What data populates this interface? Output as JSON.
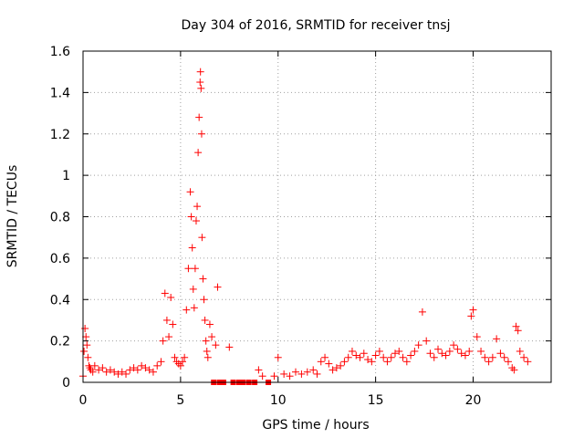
{
  "chart_data": {
    "type": "scatter",
    "title": "Day 304 of 2016, SRMTID for receiver tnsj",
    "xlabel": "GPS time / hours",
    "ylabel": "SRMTID / TECUs",
    "xlim": [
      0,
      24
    ],
    "ylim": [
      0,
      1.6
    ],
    "xticks": [
      0,
      5,
      10,
      15,
      20
    ],
    "xtick_labels": [
      "0",
      "5",
      "10",
      "15",
      "20"
    ],
    "yticks": [
      0,
      0.2,
      0.4,
      0.6,
      0.8,
      1,
      1.2,
      1.4,
      1.6
    ],
    "ytick_labels": [
      "0",
      "0.2",
      "0.4",
      "0.6",
      "0.8",
      "1",
      "1.2",
      "1.4",
      "1.6"
    ],
    "grid": true,
    "marker": "+",
    "series": [
      {
        "name": "SRMTID",
        "color": "#ff0000",
        "x": [
          0.0,
          0.05,
          0.1,
          0.15,
          0.2,
          0.25,
          0.3,
          0.35,
          0.4,
          0.5,
          0.6,
          0.8,
          1.0,
          1.2,
          1.4,
          1.6,
          1.8,
          2.0,
          2.2,
          2.4,
          2.6,
          2.8,
          3.0,
          3.2,
          3.4,
          3.6,
          3.8,
          4.0,
          4.1,
          4.2,
          4.3,
          4.4,
          4.5,
          4.6,
          4.7,
          4.8,
          4.9,
          5.0,
          5.1,
          5.2,
          5.3,
          5.4,
          5.5,
          5.55,
          5.6,
          5.65,
          5.7,
          5.75,
          5.8,
          5.85,
          5.9,
          5.95,
          6.0,
          6.02,
          6.05,
          6.08,
          6.1,
          6.15,
          6.2,
          6.25,
          6.3,
          6.35,
          6.4,
          6.5,
          6.6,
          6.7,
          6.8,
          6.9,
          7.0,
          7.2,
          7.5,
          7.7,
          8.0,
          8.2,
          8.5,
          8.8,
          9.0,
          9.2,
          9.5,
          9.8,
          10.0,
          10.3,
          10.6,
          10.9,
          11.2,
          11.5,
          11.8,
          12.0,
          12.2,
          12.4,
          12.6,
          12.8,
          13.0,
          13.2,
          13.4,
          13.6,
          13.8,
          14.0,
          14.2,
          14.4,
          14.6,
          14.8,
          15.0,
          15.2,
          15.4,
          15.6,
          15.8,
          16.0,
          16.2,
          16.4,
          16.6,
          16.8,
          17.0,
          17.2,
          17.4,
          17.6,
          17.8,
          18.0,
          18.2,
          18.4,
          18.6,
          18.8,
          19.0,
          19.2,
          19.4,
          19.6,
          19.8,
          19.9,
          20.0,
          20.2,
          20.4,
          20.6,
          20.8,
          21.0,
          21.2,
          21.4,
          21.6,
          21.8,
          22.0,
          22.1,
          22.2,
          22.3,
          22.4,
          22.6,
          22.8
        ],
        "y": [
          0.03,
          0.15,
          0.26,
          0.22,
          0.18,
          0.12,
          0.08,
          0.07,
          0.06,
          0.05,
          0.08,
          0.06,
          0.07,
          0.05,
          0.06,
          0.05,
          0.04,
          0.05,
          0.04,
          0.06,
          0.07,
          0.06,
          0.08,
          0.07,
          0.06,
          0.05,
          0.08,
          0.1,
          0.2,
          0.43,
          0.3,
          0.22,
          0.41,
          0.28,
          0.12,
          0.1,
          0.09,
          0.08,
          0.1,
          0.12,
          0.35,
          0.55,
          0.92,
          0.8,
          0.65,
          0.45,
          0.36,
          0.55,
          0.78,
          0.85,
          1.11,
          1.28,
          1.45,
          1.5,
          1.42,
          1.2,
          0.7,
          0.5,
          0.4,
          0.3,
          0.2,
          0.15,
          0.12,
          0.28,
          0.22,
          0.0,
          0.18,
          0.46,
          0.0,
          0.0,
          0.17,
          0.0,
          0.0,
          0.0,
          0.0,
          0.0,
          0.06,
          0.03,
          0.0,
          0.03,
          0.12,
          0.04,
          0.03,
          0.05,
          0.04,
          0.05,
          0.06,
          0.04,
          0.1,
          0.12,
          0.09,
          0.06,
          0.07,
          0.08,
          0.1,
          0.12,
          0.15,
          0.13,
          0.12,
          0.14,
          0.11,
          0.1,
          0.13,
          0.15,
          0.12,
          0.1,
          0.12,
          0.14,
          0.15,
          0.12,
          0.1,
          0.13,
          0.15,
          0.18,
          0.34,
          0.2,
          0.14,
          0.12,
          0.16,
          0.14,
          0.13,
          0.15,
          0.18,
          0.16,
          0.14,
          0.13,
          0.15,
          0.32,
          0.35,
          0.22,
          0.15,
          0.12,
          0.1,
          0.12,
          0.21,
          0.14,
          0.12,
          0.1,
          0.07,
          0.06,
          0.27,
          0.25,
          0.15,
          0.12,
          0.1
        ]
      }
    ]
  }
}
